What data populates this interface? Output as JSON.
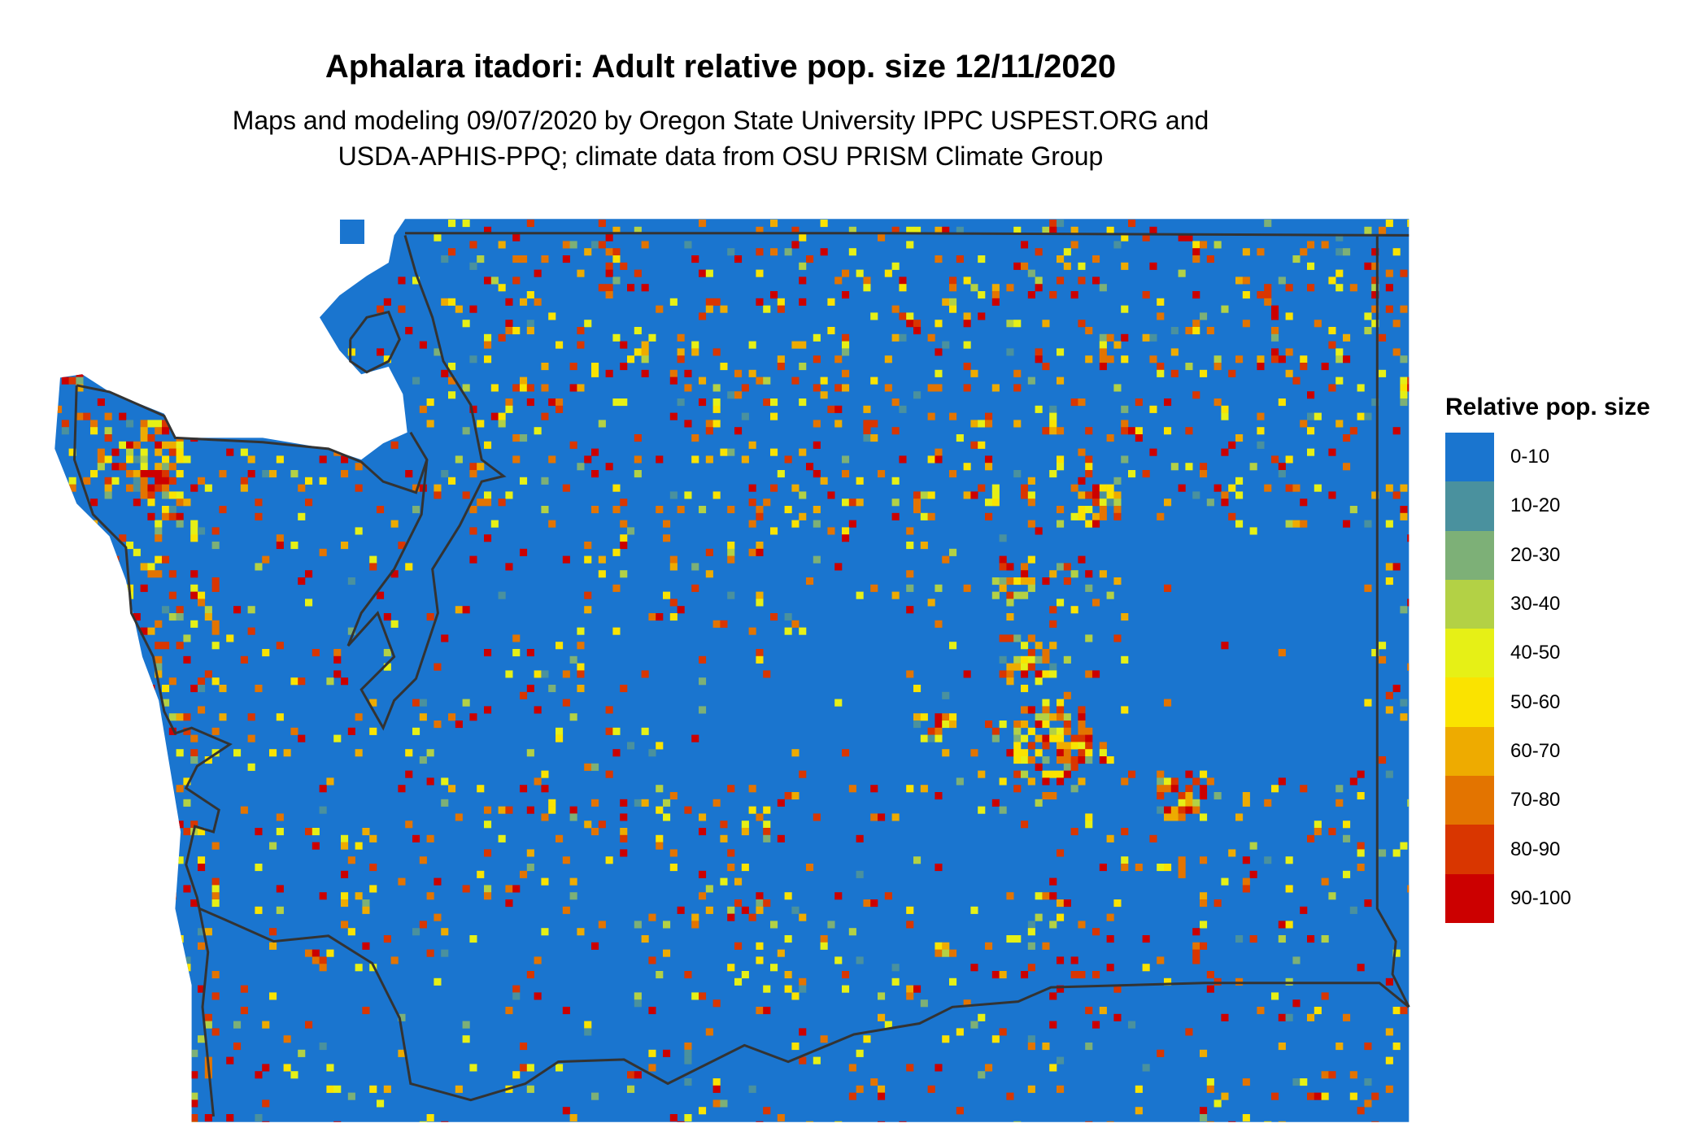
{
  "title": "Aphalara itadori: Adult relative pop. size 12/11/2020",
  "subtitle_lines": [
    "Maps and modeling 09/07/2020 by Oregon State University IPPC USPEST.ORG and",
    "USDA-APHIS-PPQ; climate data from OSU PRISM Climate Group"
  ],
  "chart_data": {
    "type": "heatmap",
    "region": "Washington State",
    "legend": {
      "title": "Relative pop. size",
      "placement": "right",
      "categories": [
        {
          "label": "0-10",
          "color": "#1a75cf"
        },
        {
          "label": "10-20",
          "color": "#4a919e"
        },
        {
          "label": "20-30",
          "color": "#7db077"
        },
        {
          "label": "30-40",
          "color": "#b3d145"
        },
        {
          "label": "40-50",
          "color": "#e6f016"
        },
        {
          "label": "50-60",
          "color": "#fae300"
        },
        {
          "label": "60-70",
          "color": "#eeab00"
        },
        {
          "label": "70-80",
          "color": "#e37400"
        },
        {
          "label": "80-90",
          "color": "#d93600"
        },
        {
          "label": "90-100",
          "color": "#cc0000"
        }
      ]
    },
    "dominant_category": "0-10",
    "boundary_color": "#333333"
  }
}
